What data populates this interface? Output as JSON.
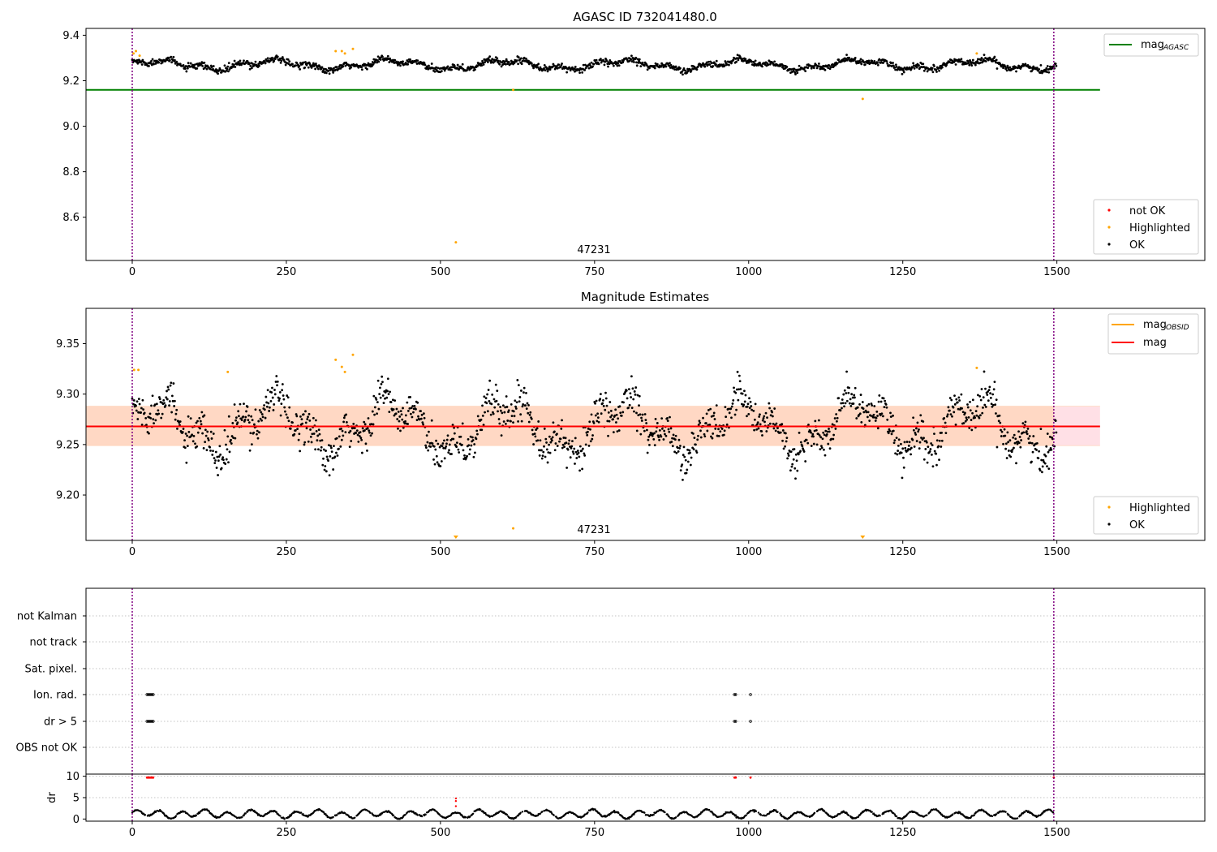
{
  "figure": {
    "title_top": "AGASC ID 732041480.0",
    "title_middle": "Magnitude Estimates",
    "obsid_label": "47231"
  },
  "colors": {
    "ok": "#000000",
    "highlighted": "#ffa500",
    "not_ok": "#ff0000",
    "mag_agasc": "#008000",
    "mag_obsid": "#ffa500",
    "mag": "#ff0000",
    "band_outer": "#ffe0e6",
    "band_inner": "#ffd8c4",
    "obs_boundary": "#800080"
  },
  "chart_data": [
    {
      "name": "top",
      "type": "scatter",
      "title": "AGASC ID 732041480.0",
      "xlim": [
        -75,
        1740
      ],
      "ylim": [
        8.41,
        9.43
      ],
      "xticks": [
        0,
        250,
        500,
        750,
        1000,
        1250,
        1500
      ],
      "yticks": [
        8.6,
        8.8,
        9.0,
        9.2,
        9.4
      ],
      "ytick_labels": [
        "8.6",
        "8.8",
        "9.0",
        "9.2",
        "9.4"
      ],
      "obs_boundaries": [
        0,
        1495
      ],
      "mag_agasc": {
        "value": 9.16,
        "x_range": [
          -75,
          1570
        ]
      },
      "ok_series": {
        "n": 1500,
        "baseline": 9.27,
        "wave": [
          {
            "amp": 0.018,
            "period": 190,
            "phase": 0.3
          },
          {
            "amp": 0.01,
            "period": 58,
            "phase": 1.7
          }
        ],
        "noise": 0.012
      },
      "highlighted_points": [
        [
          2,
          9.32
        ],
        [
          6,
          9.33
        ],
        [
          12,
          9.31
        ],
        [
          330,
          9.33
        ],
        [
          340,
          9.33
        ],
        [
          345,
          9.32
        ],
        [
          358,
          9.34
        ],
        [
          525,
          8.49
        ],
        [
          618,
          9.16
        ],
        [
          1185,
          9.12
        ],
        [
          1370,
          9.32
        ]
      ],
      "legend_line": {
        "label": "mag",
        "sub": "AGASC"
      },
      "legend_points": [
        "not OK",
        "Highlighted",
        "OK"
      ]
    },
    {
      "name": "middle",
      "type": "scatter",
      "title": "Magnitude Estimates",
      "xlim": [
        -75,
        1740
      ],
      "ylim": [
        9.155,
        9.385
      ],
      "xticks": [
        0,
        250,
        500,
        750,
        1000,
        1250,
        1500
      ],
      "yticks": [
        9.2,
        9.25,
        9.3,
        9.35
      ],
      "ytick_labels": [
        "9.20",
        "9.25",
        "9.30",
        "9.35"
      ],
      "obs_boundaries": [
        0,
        1495
      ],
      "mag": {
        "value": 9.268,
        "x_range": [
          -75,
          1570
        ]
      },
      "mag_obsid": {
        "value": 9.268,
        "x_range": [
          -75,
          1495
        ]
      },
      "band_outer": {
        "low": 9.249,
        "high": 9.288,
        "x_range": [
          -75,
          1570
        ]
      },
      "band_inner": {
        "low": 9.249,
        "high": 9.288,
        "x_range": [
          -75,
          1495
        ]
      },
      "highlighted_points": [
        [
          3,
          9.324
        ],
        [
          10,
          9.324
        ],
        [
          155,
          9.322
        ],
        [
          330,
          9.334
        ],
        [
          340,
          9.327
        ],
        [
          345,
          9.322
        ],
        [
          358,
          9.339
        ],
        [
          618,
          9.167
        ],
        [
          1370,
          9.326
        ]
      ],
      "highlighted_below": [
        525,
        1185
      ],
      "legend_line_items": [
        {
          "label": "mag",
          "sub": "OBSID"
        },
        {
          "label": "mag",
          "sub": ""
        }
      ],
      "legend_points": [
        "Highlighted",
        "OK"
      ]
    },
    {
      "name": "flags",
      "type": "scatter",
      "xlim": [
        -75,
        1740
      ],
      "xticks": [
        0,
        250,
        500,
        750,
        1000,
        1250,
        1500
      ],
      "categories": [
        "not Kalman",
        "not track",
        "Sat. pixel.",
        "Ion. rad.",
        "dr > 5",
        "OBS not OK"
      ],
      "flag_points": {
        "Ion. rad.": [
          24,
          26,
          28,
          30,
          32,
          34,
          977,
          979,
          1003
        ],
        "dr > 5": [
          24,
          26,
          28,
          30,
          32,
          34,
          977,
          979,
          1003
        ]
      },
      "obs_boundaries": [
        0,
        1495
      ]
    },
    {
      "name": "dr",
      "type": "scatter",
      "ylabel": "dr",
      "xlim": [
        -75,
        1740
      ],
      "ylim": [
        -0.5,
        10.5
      ],
      "yticks": [
        0,
        5,
        10
      ],
      "ytick_labels": [
        "0",
        "5",
        "10"
      ],
      "xticks": [
        0,
        250,
        500,
        750,
        1000,
        1250,
        1500
      ],
      "xtick_labels": [
        "0",
        "250",
        "500",
        "750",
        "1000",
        "1250",
        "1500"
      ],
      "red_top_points": [
        24,
        26,
        28,
        30,
        32,
        34,
        977,
        979,
        1003,
        1495
      ],
      "red_mid_points": [
        [
          525,
          3.0
        ],
        [
          525,
          4.2
        ],
        [
          525,
          4.8
        ]
      ],
      "obs_boundaries": [
        0,
        1495
      ]
    }
  ]
}
